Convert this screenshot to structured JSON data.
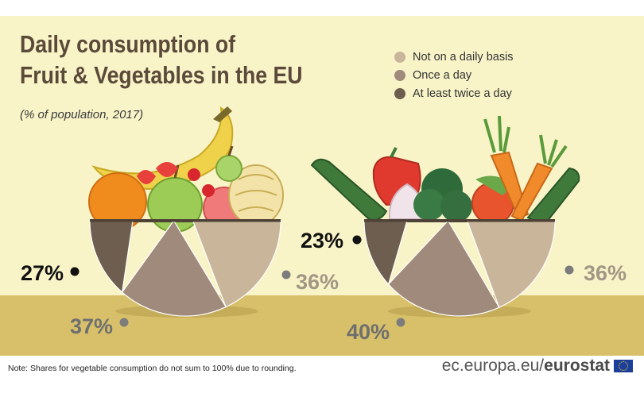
{
  "header": {
    "title_line1": "Daily consumption of",
    "title_line2": "Fruit & Vegetables in the EU",
    "subtitle": "(% of population, 2017)"
  },
  "legend": [
    {
      "label": "Not on a daily basis",
      "color": "#c8b59a"
    },
    {
      "label": "Once a day",
      "color": "#a08a7b"
    },
    {
      "label": "At least twice a day",
      "color": "#6e5e4f"
    }
  ],
  "chart_data": [
    {
      "type": "pie",
      "categories": [
        "Not on a daily basis",
        "Once a day",
        "At least twice a day"
      ],
      "values": [
        36,
        37,
        27
      ],
      "labels": [
        "36%",
        "37%",
        "27%"
      ],
      "colors": [
        "#c8b59a",
        "#a08a7b",
        "#6e5e4f"
      ]
    },
    {
      "type": "pie",
      "categories": [
        "Not on a daily basis",
        "Once a day",
        "At least twice a day"
      ],
      "values": [
        36,
        40,
        23
      ],
      "labels": [
        "36%",
        "40%",
        "23%"
      ],
      "colors": [
        "#c8b59a",
        "#a08a7b",
        "#6e5e4f"
      ]
    }
  ],
  "footer": {
    "note": "Note: Shares for vegetable consumption do not sum to 100% due to rounding.",
    "source_prefix": "ec.europa.eu/",
    "source_brand": "eurostat"
  },
  "colors": {
    "background": "#f8f4c8",
    "table": "#d8c06a",
    "title": "#5b4a3a"
  }
}
